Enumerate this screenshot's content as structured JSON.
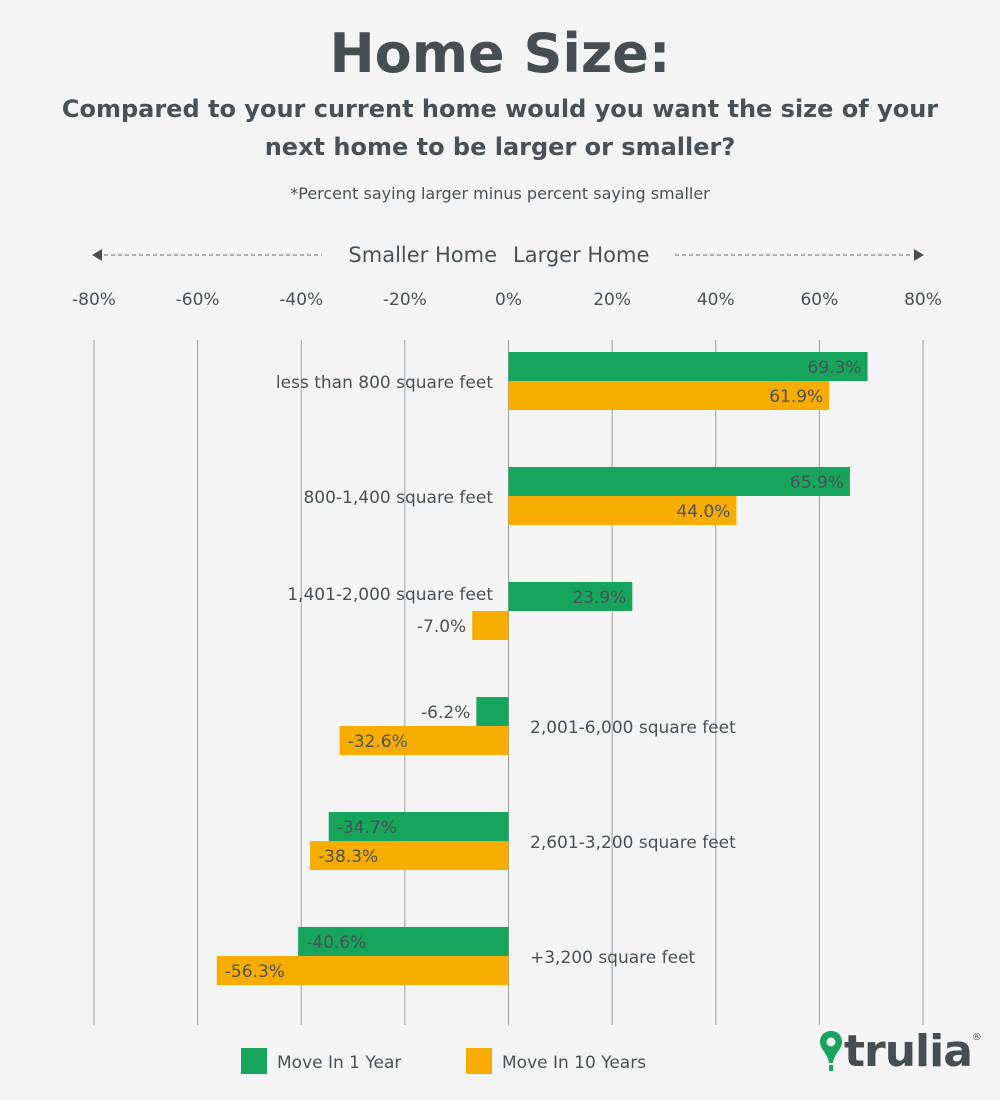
{
  "chart_data": {
    "type": "bar",
    "orientation": "horizontal",
    "title": "Home Size:",
    "subtitle": "Compared to your current home would you want the size of your next home to be larger or smaller?",
    "note": "*Percent saying larger minus percent saying smaller",
    "direction_labels": {
      "left": "Smaller Home",
      "right": "Larger Home"
    },
    "xlim": [
      -80,
      80
    ],
    "xticks": [
      -80,
      -60,
      -40,
      -20,
      0,
      20,
      40,
      60,
      80
    ],
    "xtick_labels": [
      "-80%",
      "-60%",
      "-40%",
      "-20%",
      "0%",
      "20%",
      "40%",
      "60%",
      "80%"
    ],
    "grid": true,
    "legend_placement": "bottom",
    "categories": [
      "less than 800 square feet",
      "800-1,400 square feet",
      "1,401-2,000 square feet",
      "2,001-6,000 square feet",
      "2,601-3,200 square feet",
      "+3,200 square feet"
    ],
    "series": [
      {
        "name": "Move In 1 Year",
        "color": "#17a45c",
        "values": [
          69.3,
          65.9,
          23.9,
          -6.2,
          -34.7,
          -40.6
        ],
        "labels": [
          "69.3%",
          "65.9%",
          "23.9%",
          "-6.2%",
          "-34.7%",
          "-40.6%"
        ]
      },
      {
        "name": "Move In 10 Years",
        "color": "#f6ad00",
        "values": [
          61.9,
          44.0,
          -7.0,
          -32.6,
          -38.3,
          -56.3
        ],
        "labels": [
          "61.9%",
          "44.0%",
          "-7.0%",
          "-32.6%",
          "-38.3%",
          "-56.3%"
        ]
      }
    ]
  },
  "branding": {
    "logo_text": "trulia",
    "logo_reg": "®",
    "logo_color": "#17a45c",
    "logo_icon": "map-pin-icon"
  }
}
